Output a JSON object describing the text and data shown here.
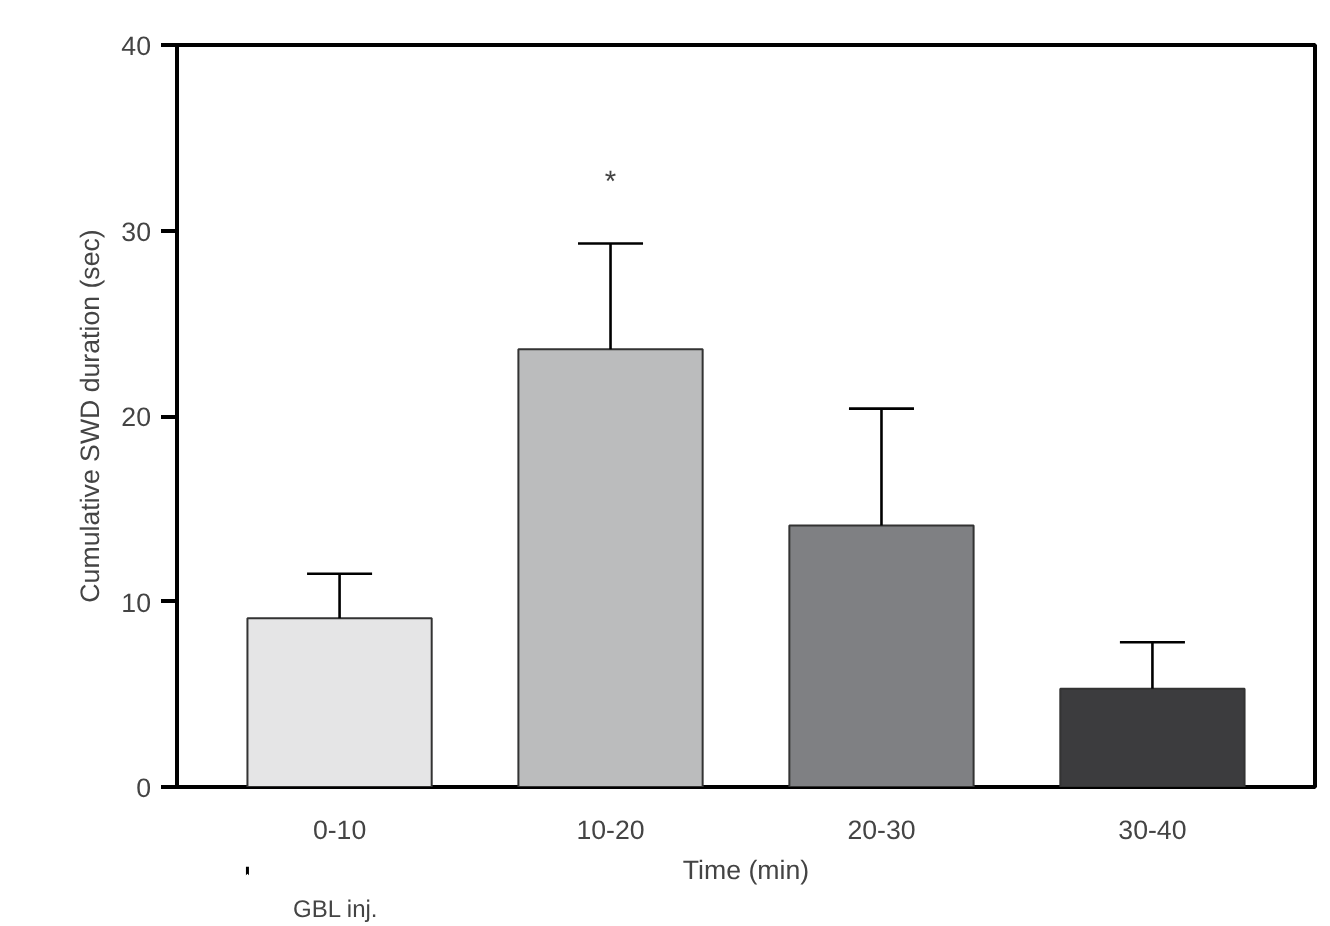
{
  "chart_data": {
    "type": "bar",
    "xlabel": "Time (min)",
    "ylabel": "Cumulative SWD duration (sec)",
    "categories": [
      "0-10",
      "10-20",
      "20-30",
      "30-40"
    ],
    "values": [
      9.1,
      23.6,
      14.1,
      5.3
    ],
    "colors": [
      "#e5e5e6",
      "#bbbcbd",
      "#7f8083",
      "#3c3c3e"
    ],
    "errors": [
      [
        9.1,
        11.5
      ],
      [
        23.6,
        29.3
      ],
      [
        14.1,
        20.4
      ],
      [
        5.3,
        7.8
      ]
    ],
    "ylim": [
      0,
      40
    ],
    "yticks": [
      0,
      10,
      20,
      30,
      40
    ],
    "grid": false,
    "annotations": [
      "*",
      "GBL inj."
    ]
  }
}
